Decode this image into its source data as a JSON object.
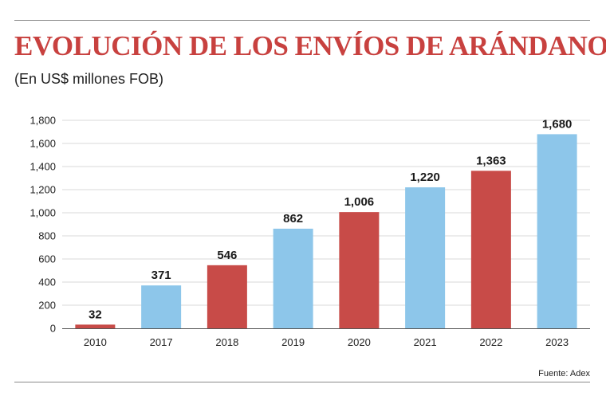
{
  "header": {
    "title": "EVOLUCIÓN DE LOS ENVÍOS DE ARÁNDANOS",
    "subtitle": "(En US$ millones FOB)"
  },
  "footer": {
    "source": "Fuente: Adex"
  },
  "colors": {
    "blue": "#8dc6ea",
    "red": "#c84b48",
    "grid": "#d9d9d9",
    "axis": "#555555"
  },
  "chart_data": {
    "type": "bar",
    "title": "EVOLUCIÓN DE LOS ENVÍOS DE ARÁNDANOS",
    "subtitle": "(En US$ millones FOB)",
    "xlabel": "",
    "ylabel": "",
    "categories": [
      "2010",
      "2017",
      "2018",
      "2019",
      "2020",
      "2021",
      "2022",
      "2023"
    ],
    "values": [
      32,
      371,
      546,
      862,
      1006,
      1220,
      1363,
      1680
    ],
    "value_labels": [
      "32",
      "371",
      "546",
      "862",
      "1,006",
      "1,220",
      "1,363",
      "1,680"
    ],
    "bar_colors": [
      "red",
      "blue",
      "red",
      "blue",
      "red",
      "blue",
      "red",
      "blue"
    ],
    "ylim": [
      0,
      1800
    ],
    "yticks": [
      0,
      200,
      400,
      600,
      800,
      1000,
      1200,
      1400,
      1600,
      1800
    ],
    "ytick_labels": [
      "0",
      "200",
      "400",
      "600",
      "800",
      "1,000",
      "1,200",
      "1,400",
      "1,600",
      "1,800"
    ],
    "grid": true,
    "legend": "none"
  }
}
